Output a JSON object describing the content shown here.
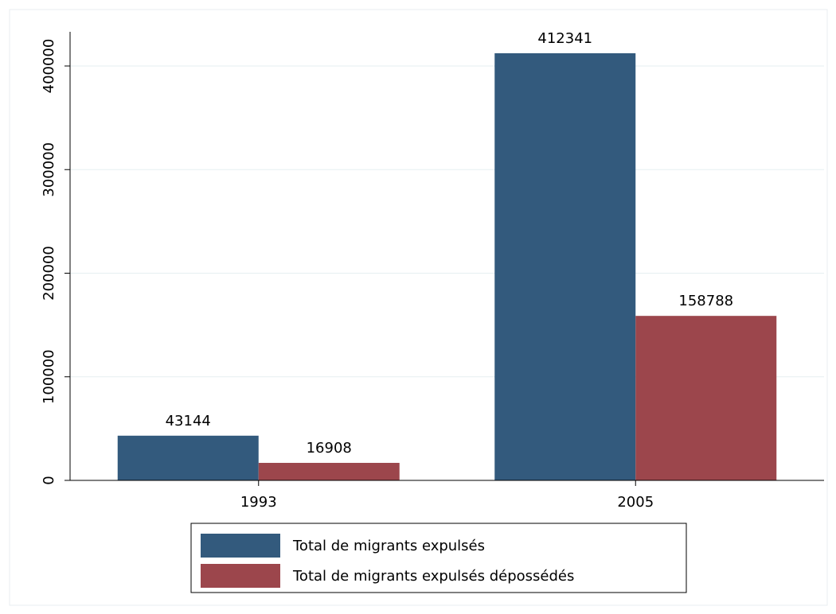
{
  "chart_data": {
    "type": "bar",
    "categories": [
      "1993",
      "2005"
    ],
    "series": [
      {
        "name": "Total de migrants expulsés",
        "color": "#335a7d",
        "values": [
          43144,
          412341
        ]
      },
      {
        "name": "Total de migrants expulsés dépossédés",
        "color": "#9c464c",
        "values": [
          16908,
          158788
        ]
      }
    ],
    "ylim": [
      0,
      433000
    ],
    "yticks": [
      0,
      100000,
      200000,
      300000,
      400000
    ],
    "grid": true,
    "legend": "bottom"
  }
}
